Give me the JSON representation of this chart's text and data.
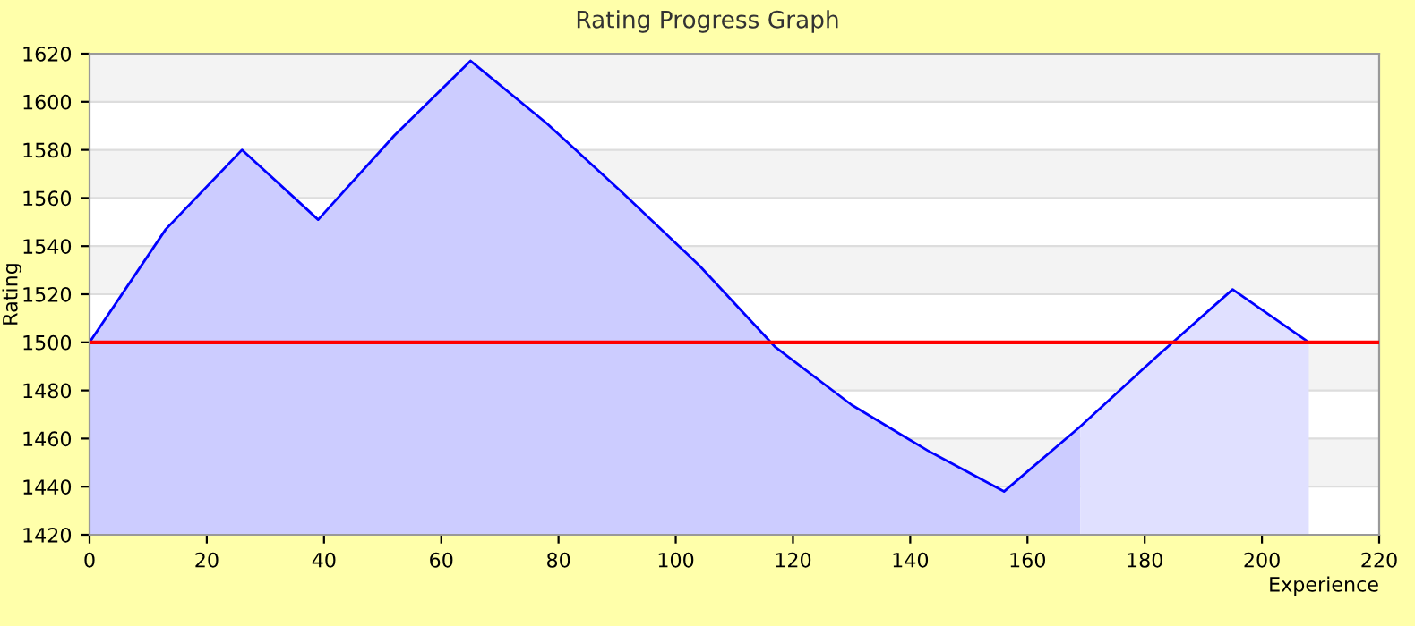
{
  "chart_data": {
    "type": "area",
    "title": "Rating Progress Graph",
    "xlabel": "Experience",
    "ylabel": "Rating",
    "series": [
      {
        "color": "#ccccff",
        "x": [
          0,
          13,
          26,
          39,
          52,
          65,
          78,
          91,
          104,
          117,
          130,
          143,
          156,
          169
        ],
        "values": [
          1500,
          1547,
          1580,
          1551,
          1586,
          1617,
          1591,
          1562,
          1532,
          1498,
          1474,
          1455,
          1438,
          1465
        ]
      },
      {
        "color": "#e0e0ff",
        "x": [
          169,
          182,
          195,
          208
        ],
        "values": [
          1465,
          1494,
          1522,
          1500
        ]
      },
      {
        "type": "line",
        "color": "#0000ff",
        "x": [
          0,
          13,
          26,
          39,
          52,
          65,
          78,
          91,
          104,
          117,
          130,
          143,
          156,
          169,
          182,
          195,
          208
        ],
        "values": [
          1500,
          1547,
          1580,
          1551,
          1586,
          1617,
          1591,
          1562,
          1532,
          1498,
          1474,
          1455,
          1438,
          1465,
          1494,
          1522,
          1500
        ]
      }
    ],
    "ref_lines": [
      {
        "axis": "y",
        "value": 1500,
        "color": "#ff0000"
      }
    ],
    "xlim": [
      0,
      220
    ],
    "xticks": [
      0,
      20,
      40,
      60,
      80,
      100,
      120,
      140,
      160,
      180,
      200,
      220
    ],
    "ylim": [
      1420,
      1620
    ],
    "yticks": [
      1420,
      1440,
      1460,
      1480,
      1500,
      1520,
      1540,
      1560,
      1580,
      1600,
      1620
    ],
    "grid": "y"
  }
}
